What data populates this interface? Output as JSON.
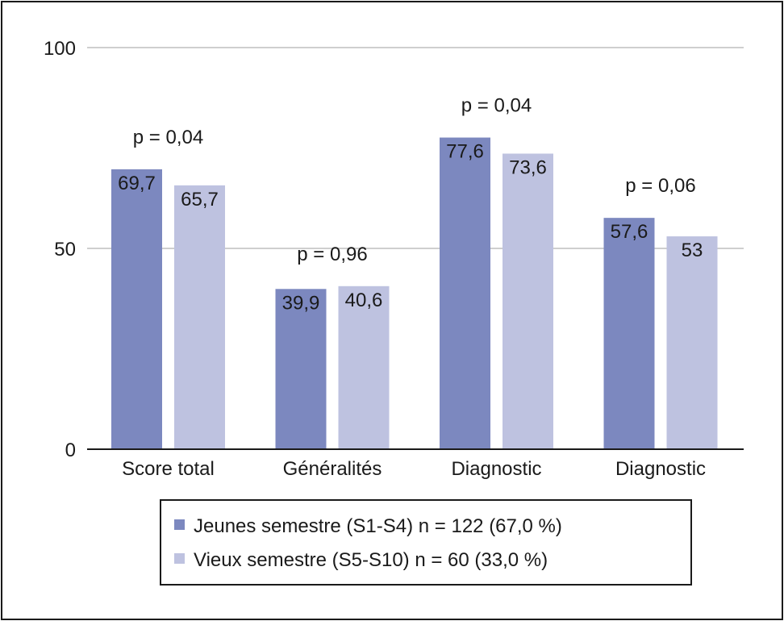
{
  "chart_data": {
    "type": "bar",
    "categories": [
      "Score total",
      "Généralités",
      "Diagnostic",
      "Diagnostic"
    ],
    "series": [
      {
        "name": "Jeunes semestre (S1-S4) n = 122 (67,0 %)",
        "values": [
          69.7,
          39.9,
          77.6,
          57.6
        ],
        "labels": [
          "69,7",
          "39,9",
          "77,6",
          "57,6"
        ],
        "color": "#7c88bf"
      },
      {
        "name": "Vieux semestre (S5-S10) n = 60 (33,0 %)",
        "values": [
          65.7,
          40.6,
          73.6,
          53
        ],
        "labels": [
          "65,7",
          "40,6",
          "73,6",
          "53"
        ],
        "color": "#bec2e0"
      }
    ],
    "annotations": [
      "p = 0,04",
      "p = 0,96",
      "p = 0,04",
      "p = 0,06"
    ],
    "yticks": [
      "0",
      "50",
      "100"
    ],
    "ylim": [
      0,
      100
    ],
    "grid": true,
    "legend_position": "bottom-right"
  },
  "colors": {
    "gridline": "#cfcfcf",
    "axis": "#1a1a1a",
    "frame": "#1a1a1a"
  }
}
